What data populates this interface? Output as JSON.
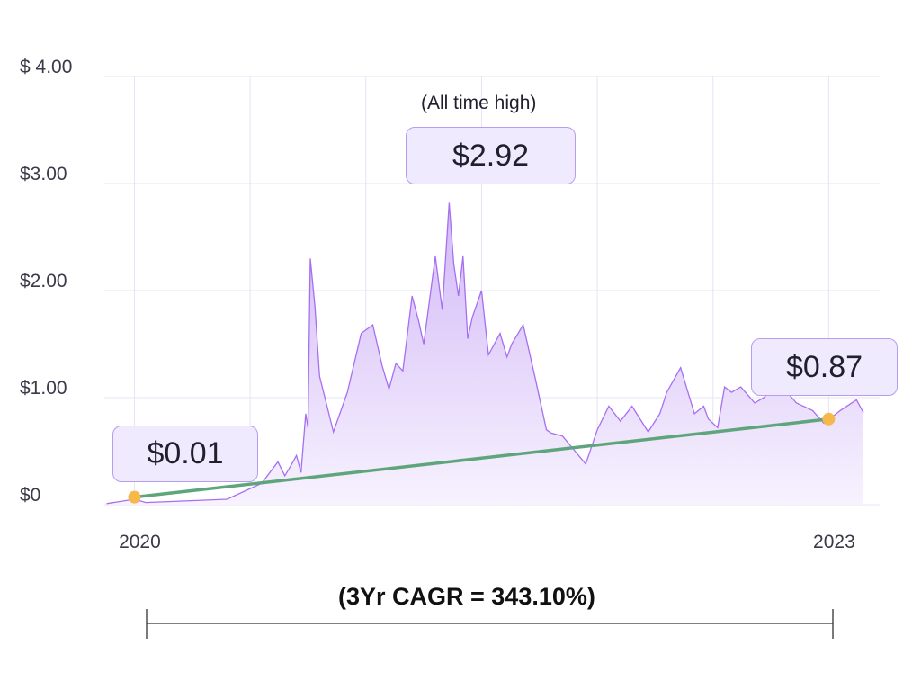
{
  "chart_data": {
    "type": "area",
    "x_tick_labels": [
      "2020",
      "2023"
    ],
    "y_tick_labels": [
      "$0",
      "$1.00",
      "$2.00",
      "$3.00",
      "$ 4.00"
    ],
    "y_tick_values": [
      0,
      1,
      2,
      3,
      4
    ],
    "ylim": [
      0,
      4
    ],
    "xlim": [
      2019.87,
      2023.22
    ],
    "grid": true,
    "series": [
      {
        "x": [
          2019.88,
          2020.0,
          2020.05,
          2020.4,
          2020.55,
          2020.62,
          2020.65,
          2020.68,
          2020.7,
          2020.72,
          2020.74,
          2020.75,
          2020.76,
          2020.78,
          2020.8,
          2020.86,
          2020.92,
          2020.98,
          2021.03,
          2021.07,
          2021.1,
          2021.13,
          2021.16,
          2021.2,
          2021.23,
          2021.25,
          2021.3,
          2021.33,
          2021.36,
          2021.38,
          2021.4,
          2021.42,
          2021.44,
          2021.46,
          2021.5,
          2021.53,
          2021.58,
          2021.61,
          2021.63,
          2021.68,
          2021.73,
          2021.78,
          2021.8,
          2021.85,
          2021.95,
          2022.0,
          2022.05,
          2022.1,
          2022.15,
          2022.22,
          2022.27,
          2022.3,
          2022.36,
          2022.42,
          2022.46,
          2022.48,
          2022.52,
          2022.55,
          2022.58,
          2022.62,
          2022.68,
          2022.72,
          2022.78,
          2022.86,
          2022.93,
          2022.98,
          2023.05,
          2023.12,
          2023.15
        ],
        "values": [
          0.01,
          0.05,
          0.02,
          0.05,
          0.2,
          0.4,
          0.27,
          0.38,
          0.46,
          0.3,
          0.85,
          0.72,
          2.3,
          1.85,
          1.2,
          0.68,
          1.05,
          1.6,
          1.68,
          1.3,
          1.08,
          1.32,
          1.25,
          1.95,
          1.7,
          1.5,
          2.32,
          1.82,
          2.82,
          2.25,
          1.95,
          2.32,
          1.55,
          1.75,
          2.0,
          1.4,
          1.6,
          1.38,
          1.5,
          1.68,
          1.2,
          0.7,
          0.67,
          0.64,
          0.38,
          0.7,
          0.92,
          0.78,
          0.92,
          0.68,
          0.85,
          1.05,
          1.28,
          0.85,
          0.92,
          0.8,
          0.72,
          1.1,
          1.05,
          1.1,
          0.95,
          1.0,
          1.15,
          0.95,
          0.88,
          0.76,
          0.88,
          0.98,
          0.86
        ]
      }
    ],
    "trend_line": {
      "x": [
        2020.0,
        2023.0
      ],
      "y": [
        0.07,
        0.8
      ]
    },
    "markers": [
      {
        "x": 2020.0,
        "y": 0.07
      },
      {
        "x": 2023.0,
        "y": 0.8
      }
    ],
    "colors": {
      "line": "#a66ff0",
      "fill_top": "#d2b8f7",
      "fill_bottom": "#f7f2fe",
      "trend": "#5fa57c",
      "marker": "#f7b84b",
      "grid": "#e7e3f4"
    }
  },
  "annotations": {
    "ath_note": "(All time high)",
    "ath_value": "$2.92",
    "start_value": "$0.01",
    "end_value": "$0.87",
    "cagr": "(3Yr CAGR = 343.10%)"
  }
}
